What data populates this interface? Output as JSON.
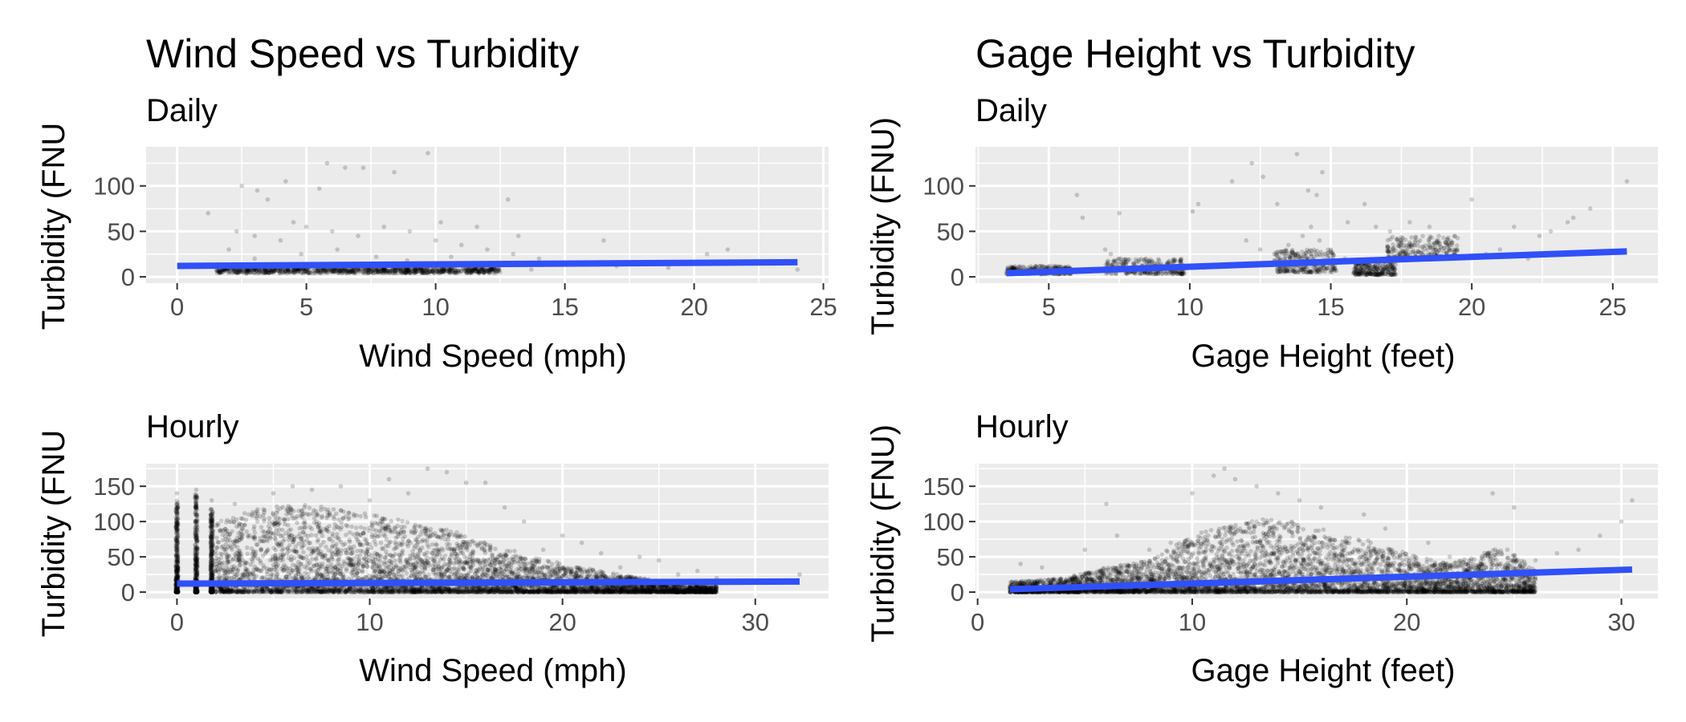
{
  "colors": {
    "panel": "#ebebeb",
    "grid": "#ffffff",
    "points": "#000000",
    "fit_line": "#3050f8",
    "tick": "#333333"
  },
  "chart_data": [
    {
      "type": "scatter",
      "title": "Wind Speed vs Turbidity",
      "subtitle": "Daily",
      "xlabel": "Wind Speed (mph)",
      "ylabel": "Turbidity (FNU",
      "xlim": [
        -1.2,
        25.2
      ],
      "ylim": [
        -7,
        143
      ],
      "xticks": [
        0,
        5,
        10,
        15,
        20,
        25
      ],
      "yticks": [
        0,
        50,
        100
      ],
      "xtick_labels": [
        "0",
        "5",
        "10",
        "15",
        "20",
        "25"
      ],
      "ytick_labels": [
        "0",
        "50",
        "100"
      ],
      "fit_line": {
        "x": [
          0,
          24
        ],
        "y": [
          12,
          16
        ]
      },
      "points": [
        [
          1.2,
          70
        ],
        [
          2.5,
          100
        ],
        [
          3.1,
          95
        ],
        [
          3.5,
          85
        ],
        [
          4.2,
          105
        ],
        [
          5.5,
          97
        ],
        [
          5.8,
          125
        ],
        [
          6.5,
          120
        ],
        [
          7.2,
          120
        ],
        [
          8.4,
          115
        ],
        [
          9.7,
          136
        ],
        [
          10.2,
          60
        ],
        [
          11.6,
          55
        ],
        [
          12.8,
          85
        ],
        [
          13.2,
          45
        ],
        [
          16.5,
          40
        ],
        [
          21.3,
          30
        ],
        [
          20.5,
          25
        ],
        [
          2,
          30
        ],
        [
          2.3,
          50
        ],
        [
          3,
          45
        ],
        [
          4,
          40
        ],
        [
          4.5,
          60
        ],
        [
          5,
          55
        ],
        [
          6,
          50
        ],
        [
          7,
          45
        ],
        [
          8,
          55
        ],
        [
          9,
          50
        ],
        [
          10,
          40
        ],
        [
          11,
          35
        ],
        [
          12,
          30
        ],
        [
          13,
          25
        ],
        [
          14,
          20
        ],
        [
          15,
          15
        ],
        [
          17,
          12
        ],
        [
          19,
          10
        ],
        [
          24,
          8
        ],
        [
          3,
          20
        ],
        [
          4.8,
          25
        ],
        [
          6.2,
          30
        ],
        [
          7.7,
          22
        ],
        [
          8.9,
          18
        ],
        [
          10.6,
          22
        ],
        [
          2.8,
          12
        ],
        [
          3.6,
          10
        ],
        [
          4.4,
          14
        ],
        [
          5.2,
          12
        ],
        [
          6.1,
          10
        ],
        [
          6.9,
          11
        ],
        [
          7.9,
          9
        ],
        [
          8.6,
          13
        ],
        [
          9.4,
          10
        ],
        [
          10.3,
          12
        ],
        [
          11.2,
          9
        ],
        [
          12.3,
          11
        ],
        [
          1.8,
          8
        ],
        [
          2.2,
          7
        ],
        [
          5.7,
          8
        ],
        [
          9.9,
          7
        ],
        [
          13.7,
          8
        ]
      ],
      "dense_band": {
        "x": [
          1.5,
          12.5
        ],
        "y": [
          4,
          10
        ]
      }
    },
    {
      "type": "scatter",
      "title": "Gage Height vs Turbidity",
      "subtitle": "Daily",
      "xlabel": "Gage Height (feet)",
      "ylabel": "Turbidity (FNU)",
      "xlim": [
        2.4,
        26.6
      ],
      "ylim": [
        -7,
        143
      ],
      "xticks": [
        5,
        10,
        15,
        20,
        25
      ],
      "yticks": [
        0,
        50,
        100
      ],
      "xtick_labels": [
        "5",
        "10",
        "15",
        "20",
        "25"
      ],
      "ytick_labels": [
        "0",
        "50",
        "100"
      ],
      "fit_line": {
        "x": [
          3.5,
          25.5
        ],
        "y": [
          4,
          28
        ]
      },
      "points": [
        [
          6,
          90
        ],
        [
          6.2,
          65
        ],
        [
          7.5,
          70
        ],
        [
          10.1,
          72
        ],
        [
          10.3,
          80
        ],
        [
          11.5,
          105
        ],
        [
          12.2,
          125
        ],
        [
          12.6,
          110
        ],
        [
          13.1,
          80
        ],
        [
          13.8,
          135
        ],
        [
          14.2,
          95
        ],
        [
          14.5,
          90
        ],
        [
          14.7,
          115
        ],
        [
          15.6,
          60
        ],
        [
          16.2,
          80
        ],
        [
          16.6,
          55
        ],
        [
          17.1,
          50
        ],
        [
          17.8,
          60
        ],
        [
          18.5,
          55
        ],
        [
          19.4,
          45
        ],
        [
          20,
          85
        ],
        [
          21.5,
          55
        ],
        [
          22.4,
          45
        ],
        [
          22.8,
          50
        ],
        [
          23.4,
          60
        ],
        [
          23.6,
          65
        ],
        [
          24.2,
          75
        ],
        [
          25.5,
          105
        ],
        [
          7,
          30
        ],
        [
          7.2,
          25
        ],
        [
          7.5,
          20
        ],
        [
          8,
          15
        ],
        [
          8.3,
          12
        ],
        [
          12,
          40
        ],
        [
          12.5,
          30
        ],
        [
          13,
          25
        ],
        [
          13.5,
          35
        ],
        [
          14,
          45
        ],
        [
          14.3,
          55
        ],
        [
          14.6,
          40
        ],
        [
          15,
          30
        ],
        [
          15.5,
          20
        ],
        [
          16,
          15
        ],
        [
          17.5,
          35
        ],
        [
          18,
          40
        ],
        [
          18.8,
          35
        ],
        [
          19.2,
          30
        ],
        [
          20.5,
          25
        ],
        [
          21,
          30
        ],
        [
          22,
          20
        ],
        [
          4,
          8
        ],
        [
          4.5,
          6
        ],
        [
          5,
          5
        ],
        [
          5.5,
          7
        ],
        [
          9,
          8
        ],
        [
          9.5,
          6
        ],
        [
          10.5,
          10
        ],
        [
          11,
          12
        ]
      ],
      "clusters": [
        {
          "x": [
            3.5,
            5.8
          ],
          "y": [
            3,
            12
          ]
        },
        {
          "x": [
            7,
            9.8
          ],
          "y": [
            3,
            20
          ]
        },
        {
          "x": [
            13,
            15.2
          ],
          "y": [
            5,
            30
          ]
        },
        {
          "x": [
            15.8,
            17.3
          ],
          "y": [
            2,
            18
          ]
        },
        {
          "x": [
            17,
            19.5
          ],
          "y": [
            20,
            45
          ]
        }
      ]
    },
    {
      "type": "scatter",
      "title": "",
      "subtitle": "Hourly",
      "xlabel": "Wind Speed (mph)",
      "ylabel": "Turbidity (FNU",
      "xlim": [
        -1.6,
        33.8
      ],
      "ylim": [
        -9,
        182
      ],
      "xticks": [
        0,
        10,
        20,
        30
      ],
      "yticks": [
        0,
        50,
        100,
        150
      ],
      "xtick_labels": [
        "0",
        "10",
        "20",
        "30"
      ],
      "ytick_labels": [
        "0",
        "50",
        "100",
        "150"
      ],
      "fit_line": {
        "x": [
          0,
          32.3
        ],
        "y": [
          12,
          15
        ]
      },
      "points": [
        [
          0,
          140
        ],
        [
          1,
          145
        ],
        [
          1.8,
          130
        ],
        [
          3,
          125
        ],
        [
          5,
          140
        ],
        [
          6,
          150
        ],
        [
          7,
          145
        ],
        [
          8.5,
          150
        ],
        [
          10,
          130
        ],
        [
          11,
          160
        ],
        [
          12,
          140
        ],
        [
          13,
          175
        ],
        [
          14,
          170
        ],
        [
          15,
          155
        ],
        [
          16,
          155
        ],
        [
          17,
          120
        ],
        [
          18,
          100
        ],
        [
          20,
          80
        ],
        [
          21,
          70
        ],
        [
          22,
          55
        ],
        [
          24,
          50
        ],
        [
          25,
          45
        ],
        [
          27,
          30
        ],
        [
          29,
          15
        ],
        [
          32.3,
          25
        ],
        [
          23,
          35
        ],
        [
          19,
          60
        ],
        [
          26,
          25
        ],
        [
          28,
          20
        ]
      ],
      "columns": [
        {
          "x": 0,
          "ymax": 130
        },
        {
          "x": 1,
          "ymax": 140
        },
        {
          "x": 1.8,
          "ymax": 120
        }
      ],
      "cloud_envelope": [
        [
          2,
          100
        ],
        [
          4,
          120
        ],
        [
          6,
          125
        ],
        [
          8,
          120
        ],
        [
          10,
          110
        ],
        [
          12,
          100
        ],
        [
          14,
          90
        ],
        [
          16,
          70
        ],
        [
          18,
          55
        ],
        [
          20,
          40
        ],
        [
          22,
          30
        ],
        [
          24,
          20
        ],
        [
          26,
          12
        ],
        [
          28,
          8
        ]
      ]
    },
    {
      "type": "scatter",
      "title": "",
      "subtitle": "Hourly",
      "xlabel": "Gage Height (feet)",
      "ylabel": "Turbidity (FNU)",
      "xlim": [
        -0.1,
        31.7
      ],
      "ylim": [
        -9,
        182
      ],
      "xticks": [
        0,
        10,
        20,
        30
      ],
      "yticks": [
        0,
        50,
        100,
        150
      ],
      "xtick_labels": [
        "0",
        "10",
        "20",
        "30"
      ],
      "ytick_labels": [
        "0",
        "50",
        "100",
        "150"
      ],
      "fit_line": {
        "x": [
          1.5,
          30.5
        ],
        "y": [
          4,
          32
        ]
      },
      "points": [
        [
          2,
          40
        ],
        [
          3,
          35
        ],
        [
          5,
          60
        ],
        [
          6,
          125
        ],
        [
          6.5,
          80
        ],
        [
          8,
          60
        ],
        [
          9,
          70
        ],
        [
          10,
          140
        ],
        [
          11,
          165
        ],
        [
          11.5,
          175
        ],
        [
          12,
          160
        ],
        [
          13,
          150
        ],
        [
          14,
          140
        ],
        [
          15,
          130
        ],
        [
          16,
          120
        ],
        [
          18,
          110
        ],
        [
          19,
          90
        ],
        [
          21,
          70
        ],
        [
          24,
          140
        ],
        [
          25,
          120
        ],
        [
          26,
          45
        ],
        [
          27,
          55
        ],
        [
          28,
          60
        ],
        [
          29,
          80
        ],
        [
          30,
          100
        ],
        [
          30.5,
          130
        ],
        [
          22,
          50
        ],
        [
          20,
          45
        ]
      ],
      "cloud_envelope": [
        [
          1.5,
          15
        ],
        [
          4,
          20
        ],
        [
          6,
          35
        ],
        [
          8,
          45
        ],
        [
          10,
          80
        ],
        [
          12,
          100
        ],
        [
          14,
          105
        ],
        [
          16,
          90
        ],
        [
          18,
          75
        ],
        [
          20,
          55
        ],
        [
          22,
          40
        ],
        [
          23.5,
          55
        ],
        [
          24.5,
          65
        ],
        [
          25.2,
          50
        ],
        [
          26,
          30
        ]
      ]
    }
  ]
}
